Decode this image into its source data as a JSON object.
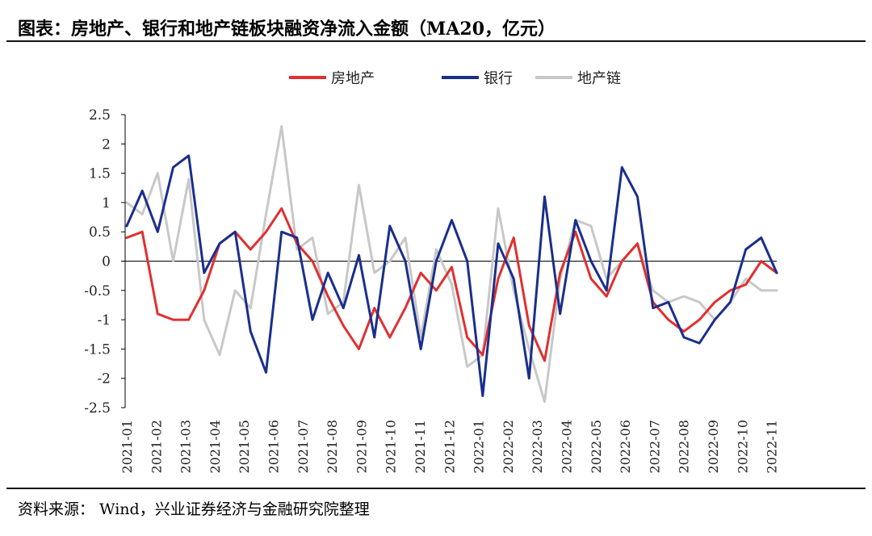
{
  "title": "图表：房地产、银行和地产链板块融资净流入金额（MA20，亿元）",
  "source": "资料来源： Wind，兴业证券经济与金融研究院整理",
  "chart_data": {
    "type": "line",
    "title": "房地产、银行和地产链板块融资净流入金额（MA20，亿元）",
    "xlabel": "",
    "ylabel": "亿元",
    "ylim": [
      -2.5,
      2.5
    ],
    "yticks": [
      "2.5",
      "2",
      "1.5",
      "1",
      "0.5",
      "0",
      "-0.5",
      "-1",
      "-1.5",
      "-2",
      "-2.5"
    ],
    "xticks": [
      "2021-01",
      "2021-02",
      "2021-03",
      "2021-04",
      "2021-05",
      "2021-06",
      "2021-07",
      "2021-08",
      "2021-09",
      "2021-10",
      "2021-11",
      "2021-12",
      "2022-01",
      "2022-02",
      "2022-03",
      "2022-04",
      "2022-05",
      "2022-06",
      "2022-07",
      "2022-08",
      "2022-09",
      "2022-10",
      "2022-11"
    ],
    "legend_position": "top-center",
    "series": [
      {
        "name": "房地产",
        "color": "#e03030",
        "values": [
          0.4,
          0.5,
          -0.9,
          -1.0,
          -1.0,
          -0.5,
          0.3,
          0.5,
          0.2,
          0.5,
          0.9,
          0.3,
          0.0,
          -0.6,
          -1.1,
          -1.5,
          -0.8,
          -1.3,
          -0.8,
          -0.2,
          -0.5,
          -0.1,
          -1.3,
          -1.6,
          -0.3,
          0.4,
          -1.1,
          -1.7,
          -0.2,
          0.5,
          -0.3,
          -0.6,
          0.0,
          0.3,
          -0.7,
          -1.0,
          -1.2,
          -1.0,
          -0.7,
          -0.5,
          -0.4,
          0.0,
          -0.2
        ]
      },
      {
        "name": "银行",
        "color": "#1a2f8c",
        "values": [
          0.6,
          1.2,
          0.5,
          1.6,
          1.8,
          -0.2,
          0.3,
          0.5,
          -1.2,
          -1.9,
          0.5,
          0.4,
          -1.0,
          -0.2,
          -0.8,
          0.1,
          -1.3,
          0.6,
          0.0,
          -1.5,
          0.0,
          0.7,
          0.0,
          -2.3,
          0.3,
          -0.3,
          -2.0,
          1.1,
          -0.9,
          0.7,
          0.0,
          -0.5,
          1.6,
          1.1,
          -0.8,
          -0.7,
          -1.3,
          -1.4,
          -1.0,
          -0.7,
          0.2,
          0.4,
          -0.2
        ]
      },
      {
        "name": "地产链",
        "color": "#c8c8c8",
        "values": [
          1.0,
          0.8,
          1.5,
          0.0,
          1.4,
          -1.0,
          -1.6,
          -0.5,
          -0.8,
          0.8,
          2.3,
          0.2,
          0.4,
          -0.9,
          -0.7,
          1.3,
          -0.2,
          0.0,
          0.4,
          -1.3,
          0.2,
          -0.4,
          -1.8,
          -1.6,
          0.9,
          -0.5,
          -1.5,
          -2.4,
          -0.3,
          0.7,
          0.6,
          -0.3,
          0.0,
          0.3,
          -0.5,
          -0.7,
          -0.6,
          -0.7,
          -1.0,
          -0.7,
          -0.3,
          -0.5,
          -0.5
        ]
      }
    ]
  }
}
